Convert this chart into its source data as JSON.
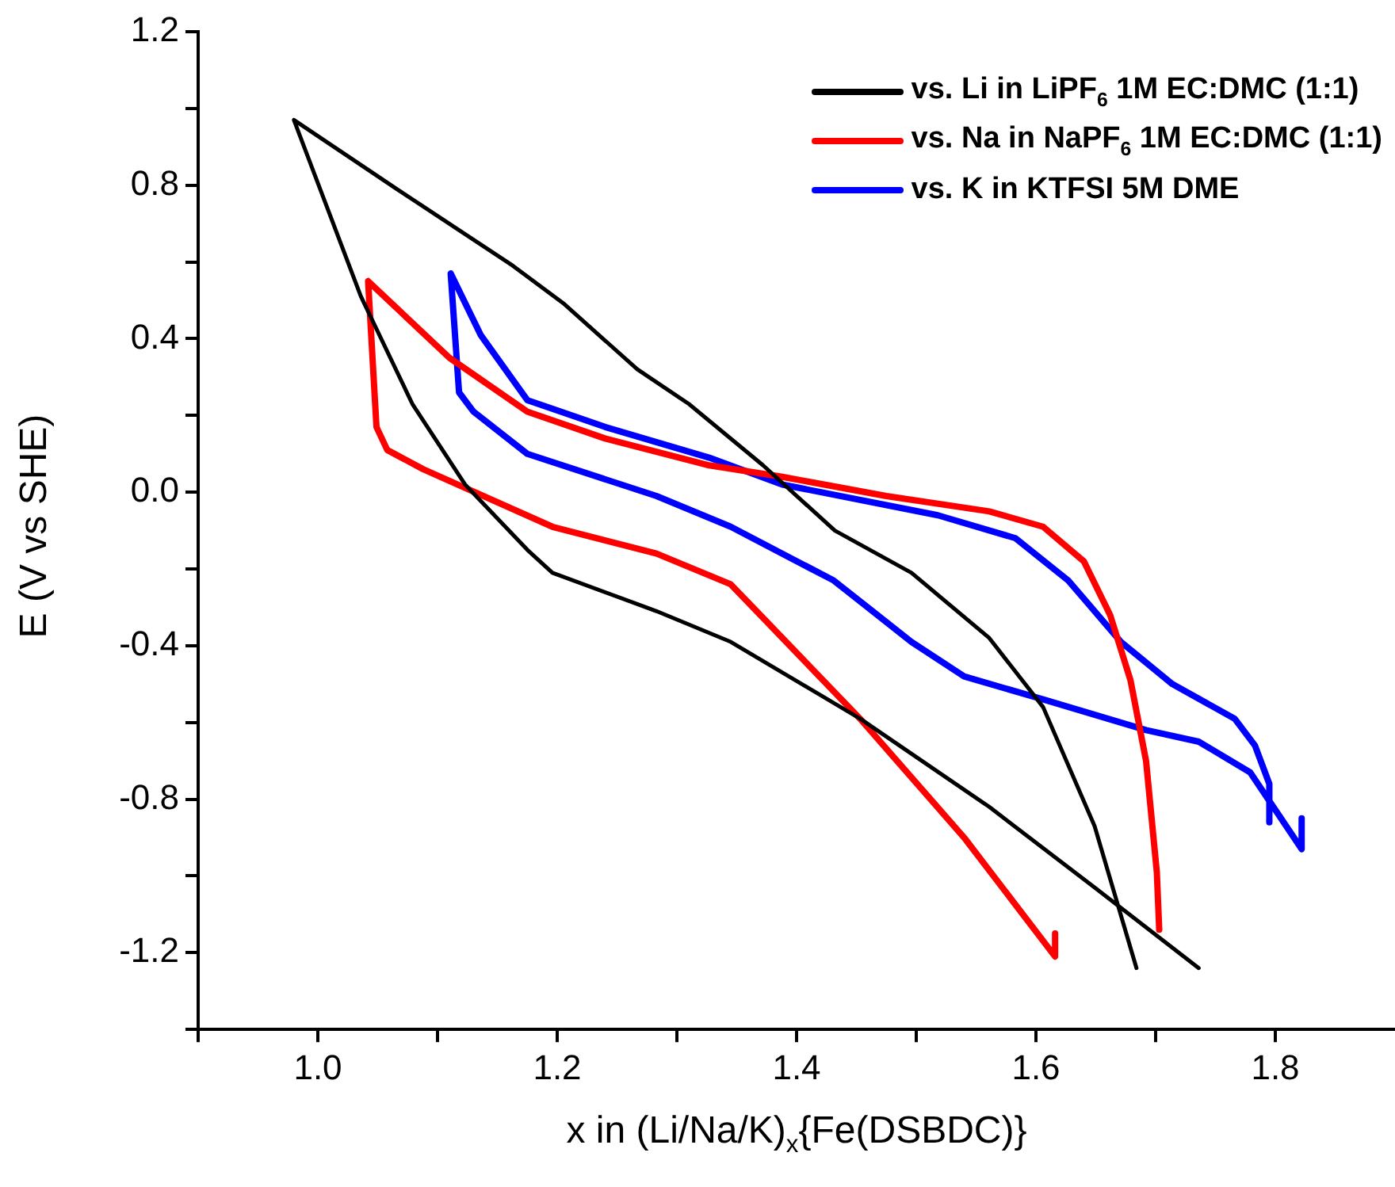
{
  "chart_data": {
    "type": "line",
    "xlabel": "x in (Li/Na/K)$_{x}${Fe(DSBDC)}",
    "ylabel": "E (V vs SHE)",
    "xlim": [
      0.9,
      1.9
    ],
    "xticks": [
      {
        "value": 0.9,
        "label": null
      },
      {
        "value": 1.0,
        "label": "1.0"
      },
      {
        "value": 1.1,
        "label": null
      },
      1.2,
      {
        "value": 1.3,
        "label": null
      },
      1.4,
      {
        "value": 1.5,
        "label": null
      },
      1.6,
      {
        "value": 1.7,
        "label": null
      },
      1.8
    ],
    "ylim": [
      -1.4,
      1.2
    ],
    "yticks": [
      {
        "value": -1.4,
        "label": null
      },
      -1.2,
      {
        "value": -1.0,
        "label": null
      },
      -0.8,
      {
        "value": -0.6,
        "label": null
      },
      -0.4,
      {
        "value": -0.2,
        "label": null
      },
      {
        "value": 0.0,
        "label": "0.0"
      },
      {
        "value": 0.2,
        "label": null
      },
      0.4,
      {
        "value": 0.6,
        "label": null
      },
      0.8,
      {
        "value": 1.0,
        "label": null
      },
      1.2
    ],
    "grid": false,
    "legend": "top right",
    "marker": "none",
    "line_style": "solid",
    "series": [
      {
        "name": "vs. Li in LiPF$_{6}$ 1M EC:DMC (1:1)",
        "color": "#000000",
        "x": [
          1.684,
          1.649,
          1.606,
          1.561,
          1.496,
          1.432,
          1.372,
          1.31,
          1.267,
          1.206,
          1.163,
          1.066,
          0.98,
          1.036,
          1.079,
          1.123,
          1.175,
          1.196,
          1.283,
          1.345,
          1.453,
          1.561,
          1.649,
          1.736
        ],
        "values": [
          -1.24,
          -0.87,
          -0.56,
          -0.38,
          -0.21,
          -0.1,
          0.07,
          0.23,
          0.32,
          0.49,
          0.59,
          0.79,
          0.97,
          0.51,
          0.23,
          0.02,
          -0.15,
          -0.21,
          -0.31,
          -0.39,
          -0.59,
          -0.82,
          -1.03,
          -1.24
        ]
      },
      {
        "name": "vs. Na in NaPF$_{6}$ 1M EC:DMC (1:1)",
        "color": "#ff0000",
        "x": [
          1.703,
          1.701,
          1.692,
          1.679,
          1.662,
          1.64,
          1.606,
          1.561,
          1.475,
          1.388,
          1.327,
          1.24,
          1.175,
          1.11,
          1.042,
          1.049,
          1.058,
          1.088,
          1.196,
          1.283,
          1.345,
          1.453,
          1.54,
          1.616,
          1.616
        ],
        "values": [
          -1.14,
          -0.99,
          -0.7,
          -0.49,
          -0.32,
          -0.18,
          -0.09,
          -0.05,
          -0.01,
          0.04,
          0.07,
          0.14,
          0.21,
          0.35,
          0.55,
          0.17,
          0.11,
          0.06,
          -0.09,
          -0.16,
          -0.24,
          -0.59,
          -0.9,
          -1.21,
          -1.15
        ]
      },
      {
        "name": "vs. K in KTFSI 5M DME",
        "color": "#0000ff",
        "x": [
          1.795,
          1.795,
          1.783,
          1.766,
          1.714,
          1.671,
          1.627,
          1.583,
          1.518,
          1.388,
          1.327,
          1.24,
          1.175,
          1.136,
          1.111,
          1.118,
          1.13,
          1.175,
          1.283,
          1.345,
          1.431,
          1.496,
          1.54,
          1.606,
          1.692,
          1.736,
          1.779,
          1.822,
          1.822
        ],
        "values": [
          -0.86,
          -0.76,
          -0.66,
          -0.59,
          -0.5,
          -0.39,
          -0.23,
          -0.12,
          -0.06,
          0.02,
          0.09,
          0.17,
          0.24,
          0.41,
          0.57,
          0.26,
          0.21,
          0.1,
          -0.01,
          -0.09,
          -0.23,
          -0.39,
          -0.48,
          -0.54,
          -0.62,
          -0.65,
          -0.73,
          -0.93,
          -0.85
        ]
      }
    ]
  }
}
